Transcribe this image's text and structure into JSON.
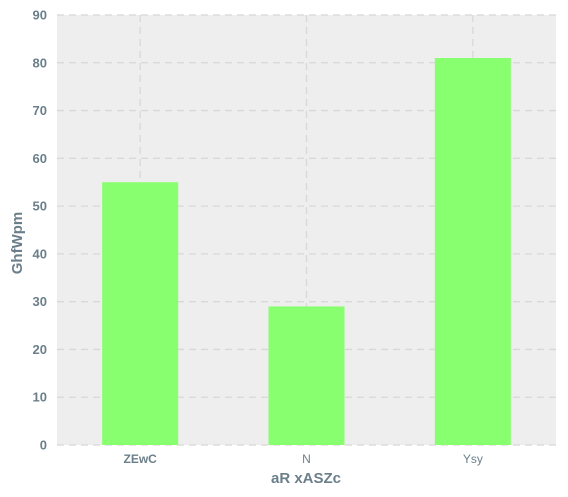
{
  "chart_data": {
    "type": "bar",
    "categories": [
      "ZEwC",
      "N",
      "Ysy"
    ],
    "values": [
      55,
      29,
      81
    ],
    "xlabel": "aR xASZc",
    "ylabel": "GhfWpm",
    "ylim": [
      0,
      90
    ],
    "yticks": [
      0,
      10,
      20,
      30,
      40,
      50,
      60,
      70,
      80,
      90
    ],
    "grid": true,
    "legend": "none",
    "bar_color": "#88ff6e",
    "background_color": "#eeeeee",
    "grid_color": "#d8d8d8",
    "text_color": "#6b7f8a"
  }
}
